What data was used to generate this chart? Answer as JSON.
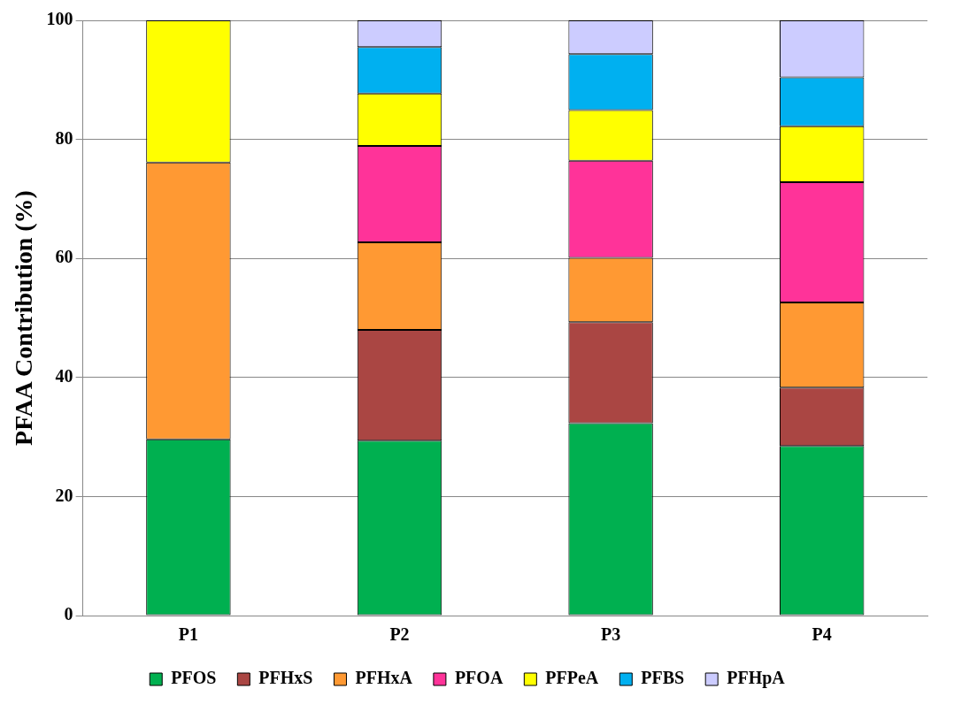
{
  "chart_data": {
    "type": "bar",
    "ylabel": "PFAA Contribution (%)",
    "categories": [
      "P1",
      "P2",
      "P3",
      "P4"
    ],
    "stacked": true,
    "ylim": [
      0,
      100
    ],
    "yticks": [
      0,
      20,
      40,
      60,
      80,
      100
    ],
    "grid": "y",
    "legend": "bottom",
    "series": [
      {
        "name": "PFOS",
        "color": "#00b050",
        "values": [
          29.6,
          29.4,
          32.3,
          28.5
        ]
      },
      {
        "name": "PFHxS",
        "color": "#aa4643",
        "values": [
          0,
          18.6,
          17.0,
          9.8
        ]
      },
      {
        "name": "PFHxA",
        "color": "#ff9933",
        "values": [
          46.5,
          14.7,
          10.8,
          14.3
        ]
      },
      {
        "name": "PFOA",
        "color": "#ff3399",
        "values": [
          0,
          16.2,
          16.3,
          20.2
        ]
      },
      {
        "name": "PFPeA",
        "color": "#ffff00",
        "values": [
          23.9,
          8.8,
          8.5,
          9.4
        ]
      },
      {
        "name": "PFBS",
        "color": "#00b0f0",
        "values": [
          0,
          7.8,
          9.4,
          8.2
        ]
      },
      {
        "name": "PFHpA",
        "color": "#ccccff",
        "values": [
          0,
          4.5,
          5.7,
          9.6
        ]
      }
    ]
  }
}
